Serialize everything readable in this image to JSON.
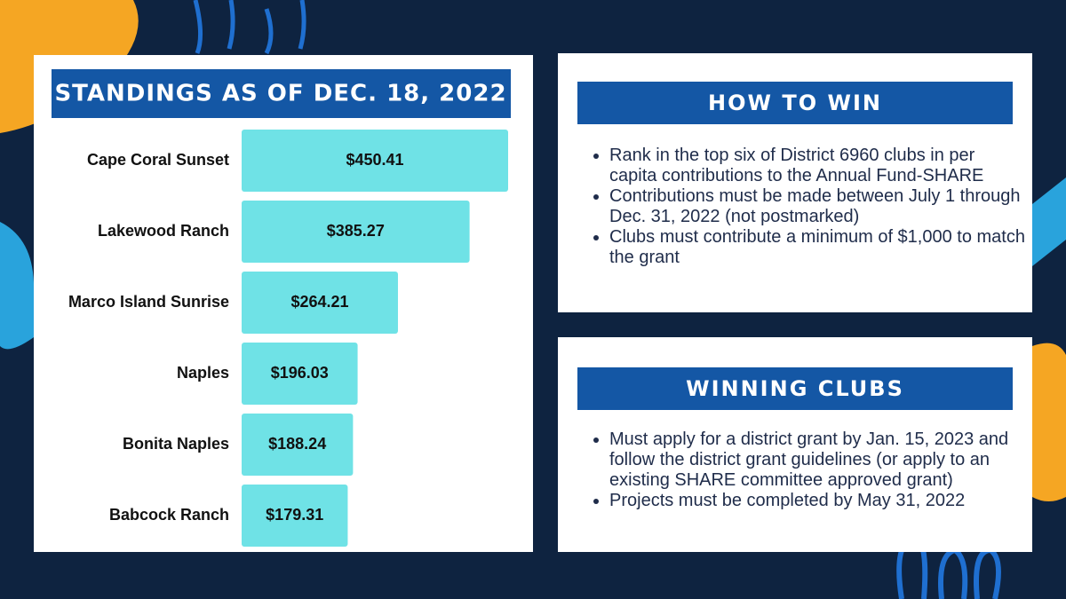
{
  "chart_data": {
    "type": "bar",
    "orientation": "horizontal",
    "title": "STANDINGS AS OF DEC. 18, 2022",
    "categories": [
      "Cape Coral Sunset",
      "Lakewood Ranch",
      "Marco Island Sunrise",
      "Naples",
      "Bonita Naples",
      "Babcock Ranch"
    ],
    "values": [
      450.41,
      385.27,
      264.21,
      196.03,
      188.24,
      179.31
    ],
    "value_labels": [
      "$450.41",
      "$385.27",
      "$264.21",
      "$196.03",
      "$188.24",
      "$179.31"
    ],
    "color": "#6fe2e6"
  },
  "panels": [
    {
      "title": "HOW TO WIN",
      "bullets": [
        "Rank in the top six of District 6960 clubs in per capita contributions to the Annual Fund-SHARE",
        "Contributions must be made between July 1 through Dec. 31, 2022 (not postmarked)",
        "Clubs must contribute a minimum of $1,000 to match the grant"
      ]
    },
    {
      "title": "WINNING CLUBS",
      "bullets": [
        "Must apply for a district grant by Jan. 15, 2023 and follow the district grant guidelines (or apply to an existing SHARE committee approved grant)",
        "Projects must be completed by May 31, 2022"
      ]
    }
  ]
}
